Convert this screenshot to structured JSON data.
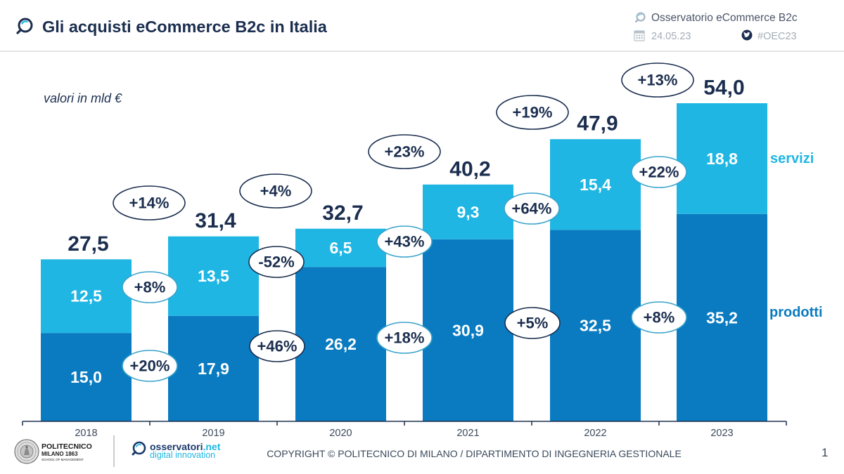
{
  "header": {
    "org": "Osservatorio eCommerce B2c",
    "date": "24.05.23",
    "hashtag": "#OEC23"
  },
  "chart_data": {
    "type": "bar",
    "stacked": true,
    "title": "Gli acquisti eCommerce B2c in Italia",
    "xlabel": "",
    "ylabel": "valori in mld €",
    "categories": [
      "2018",
      "2019",
      "2020",
      "2021",
      "2022",
      "2023"
    ],
    "series": [
      {
        "name": "prodotti",
        "color": "#0a7bc0",
        "values": [
          15.0,
          17.9,
          26.2,
          30.9,
          32.5,
          35.2
        ],
        "labels": [
          "15,0",
          "17,9",
          "26,2",
          "30,9",
          "32,5",
          "35,2"
        ]
      },
      {
        "name": "servizi",
        "color": "#1fb6e3",
        "values": [
          12.5,
          13.5,
          6.5,
          9.3,
          15.4,
          18.8
        ],
        "labels": [
          "12,5",
          "13,5",
          "6,5",
          "9,3",
          "15,4",
          "18,8"
        ]
      }
    ],
    "totals": [
      27.5,
      31.4,
      32.7,
      40.2,
      47.9,
      54.0
    ],
    "total_labels": [
      "27,5",
      "31,4",
      "32,7",
      "40,2",
      "47,9",
      "54,0"
    ],
    "growth": {
      "totale": [
        "+14%",
        "+4%",
        "+23%",
        "+19%",
        "+13%"
      ],
      "servizi": [
        "+8%",
        "-52%",
        "+43%",
        "+64%",
        "+22%"
      ],
      "prodotti": [
        "+20%",
        "+46%",
        "+18%",
        "+5%",
        "+8%"
      ]
    },
    "ylim": [
      0,
      54
    ]
  },
  "footer": {
    "university": "POLITECNICO",
    "city": "MILANO 1863",
    "school": "SCHOOL OF MANAGEMENT",
    "brand": "osservatori",
    "brand_tld": ".net",
    "brand_sub": "digital innovation",
    "copyright": "COPYRIGHT © POLITECNICO DI MILANO / DIPARTIMENTO DI INGEGNERIA GESTIONALE",
    "page_number": "1"
  }
}
